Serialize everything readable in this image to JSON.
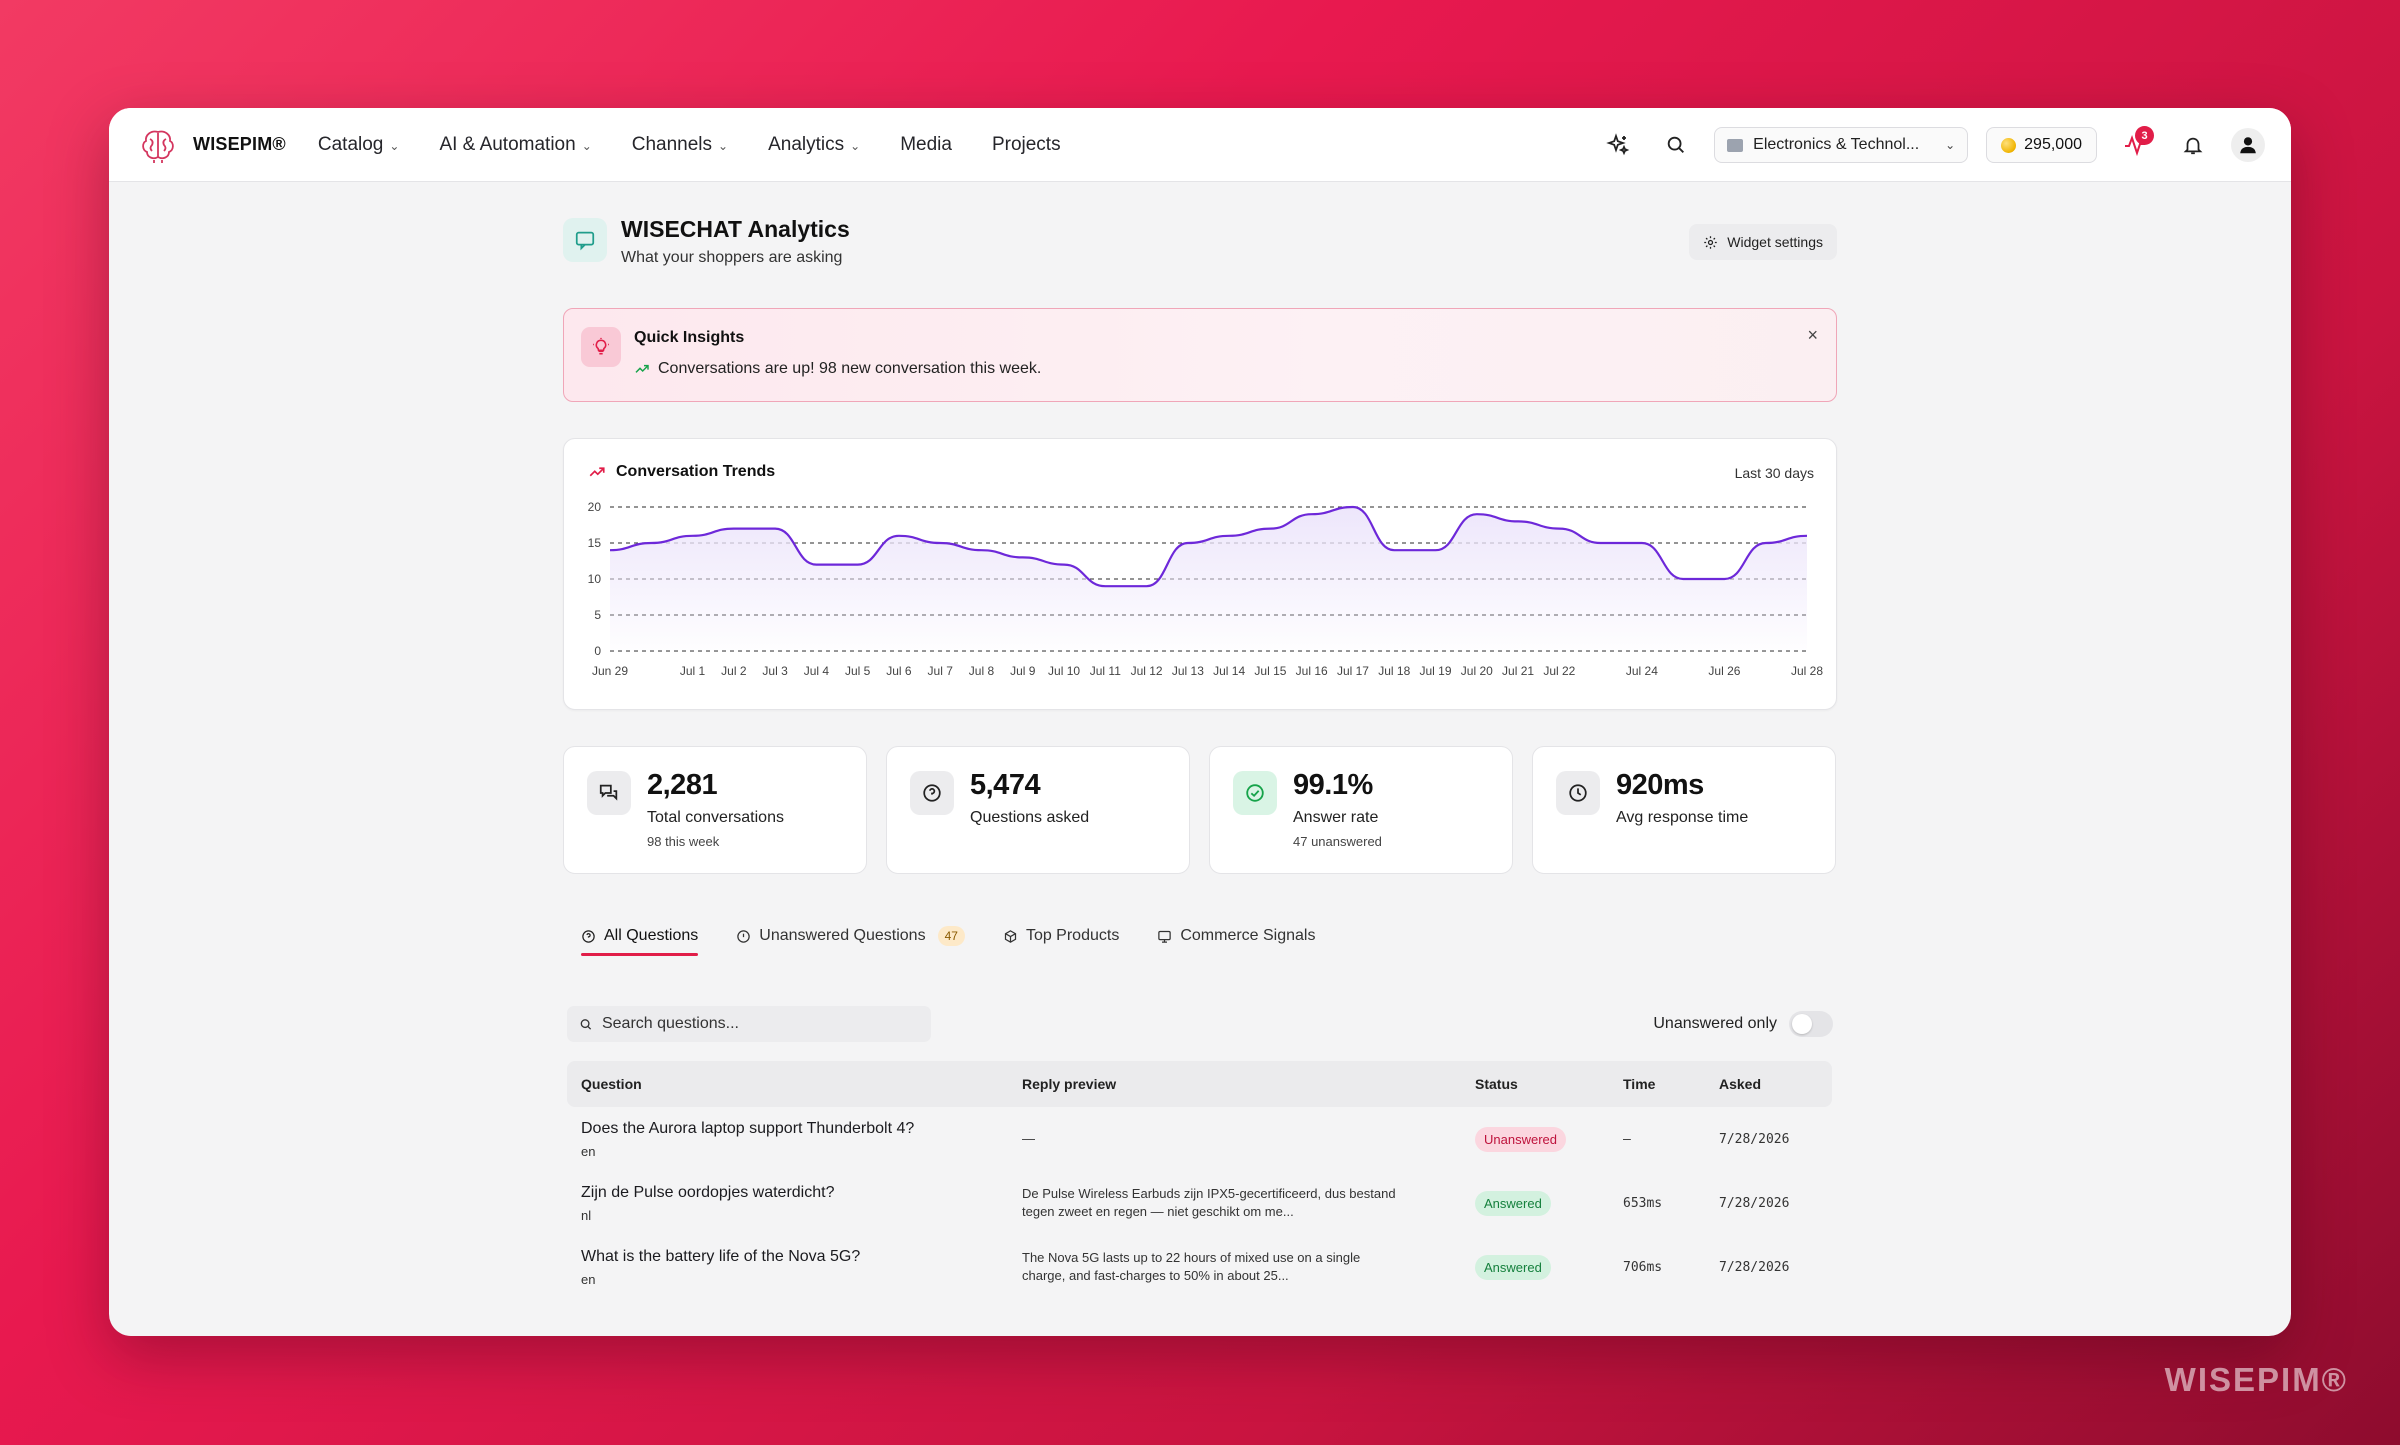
{
  "app": {
    "logo_text": "WISEPIM®",
    "watermark": "WISEPIM®"
  },
  "nav": {
    "items": [
      {
        "label": "Catalog",
        "dropdown": true
      },
      {
        "label": "AI & Automation",
        "dropdown": true
      },
      {
        "label": "Channels",
        "dropdown": true
      },
      {
        "label": "Analytics",
        "dropdown": true
      },
      {
        "label": "Media",
        "dropdown": false
      },
      {
        "label": "Projects",
        "dropdown": false
      }
    ]
  },
  "toolbar": {
    "store_label": "Electronics & Technol...",
    "credits": "295,000",
    "activity_badge": "3"
  },
  "page": {
    "title": "WISECHAT Analytics",
    "subtitle": "What your shoppers are asking",
    "widget_settings": "Widget settings"
  },
  "insights": {
    "title": "Quick Insights",
    "message": "Conversations are up! 98 new conversation this week.",
    "close": "×"
  },
  "chart_panel": {
    "title": "Conversation Trends",
    "range": "Last 30 days"
  },
  "chart_data": {
    "type": "area",
    "x": [
      "Jun 29",
      "Jun 30",
      "Jul 1",
      "Jul 2",
      "Jul 3",
      "Jul 4",
      "Jul 5",
      "Jul 6",
      "Jul 7",
      "Jul 8",
      "Jul 9",
      "Jul 10",
      "Jul 11",
      "Jul 12",
      "Jul 13",
      "Jul 14",
      "Jul 15",
      "Jul 16",
      "Jul 17",
      "Jul 18",
      "Jul 19",
      "Jul 20",
      "Jul 21",
      "Jul 22",
      "Jul 23",
      "Jul 24",
      "Jul 25",
      "Jul 26",
      "Jul 27",
      "Jul 28"
    ],
    "x_tick_labels": [
      "Jun 29",
      "Jul 1",
      "Jul 2",
      "Jul 3",
      "Jul 4",
      "Jul 5",
      "Jul 6",
      "Jul 7",
      "Jul 8",
      "Jul 9",
      "Jul 10",
      "Jul 11",
      "Jul 12",
      "Jul 13",
      "Jul 14",
      "Jul 15",
      "Jul 16",
      "Jul 17",
      "Jul 18",
      "Jul 19",
      "Jul 20",
      "Jul 21",
      "Jul 22",
      "Jul 24",
      "Jul 26",
      "Jul 28"
    ],
    "series": [
      {
        "values": [
          14,
          15,
          16,
          17,
          17,
          12,
          12,
          16,
          15,
          14,
          13,
          12,
          9,
          9,
          15,
          16,
          17,
          19,
          20,
          14,
          14,
          19,
          18,
          17,
          15,
          15,
          10,
          10,
          15,
          16
        ]
      }
    ],
    "yticks": [
      0,
      5,
      10,
      15,
      20
    ],
    "ylim": [
      0,
      20
    ],
    "grid": true,
    "line_color": "#6d28d9",
    "fill_color": "#ede6fb"
  },
  "stats": [
    {
      "value": "2,281",
      "label": "Total conversations",
      "sub": "98 this week",
      "icon": "messages-icon"
    },
    {
      "value": "5,474",
      "label": "Questions asked",
      "sub": "",
      "icon": "question-icon"
    },
    {
      "value": "99.1%",
      "label": "Answer rate",
      "sub": "47 unanswered",
      "icon": "check-circle-icon"
    },
    {
      "value": "920ms",
      "label": "Avg response time",
      "sub": "",
      "icon": "clock-icon"
    }
  ],
  "tabs": [
    {
      "label": "All Questions",
      "active": true
    },
    {
      "label": "Unanswered Questions",
      "badge": "47"
    },
    {
      "label": "Top Products"
    },
    {
      "label": "Commerce Signals"
    }
  ],
  "filters": {
    "search_placeholder": "Search questions...",
    "toggle_label": "Unanswered only"
  },
  "table": {
    "headers": [
      "Question",
      "Reply preview",
      "Status",
      "Time",
      "Asked"
    ],
    "rows": [
      {
        "question": "Does the Aurora laptop support Thunderbolt 4?",
        "lang": "en",
        "reply": "—",
        "status": "Unanswered",
        "time": "—",
        "asked": "7/28/2026"
      },
      {
        "question": "Zijn de Pulse oordopjes waterdicht?",
        "lang": "nl",
        "reply": "De Pulse Wireless Earbuds zijn IPX5-gecertificeerd, dus bestand tegen zweet en regen — niet geschikt om me...",
        "status": "Answered",
        "time": "653ms",
        "asked": "7/28/2026"
      },
      {
        "question": "What is the battery life of the Nova 5G?",
        "lang": "en",
        "reply": "The Nova 5G lasts up to 22 hours of mixed use on a single charge, and fast-charges to 50% in about 25...",
        "status": "Answered",
        "time": "706ms",
        "asked": "7/28/2026"
      }
    ]
  }
}
